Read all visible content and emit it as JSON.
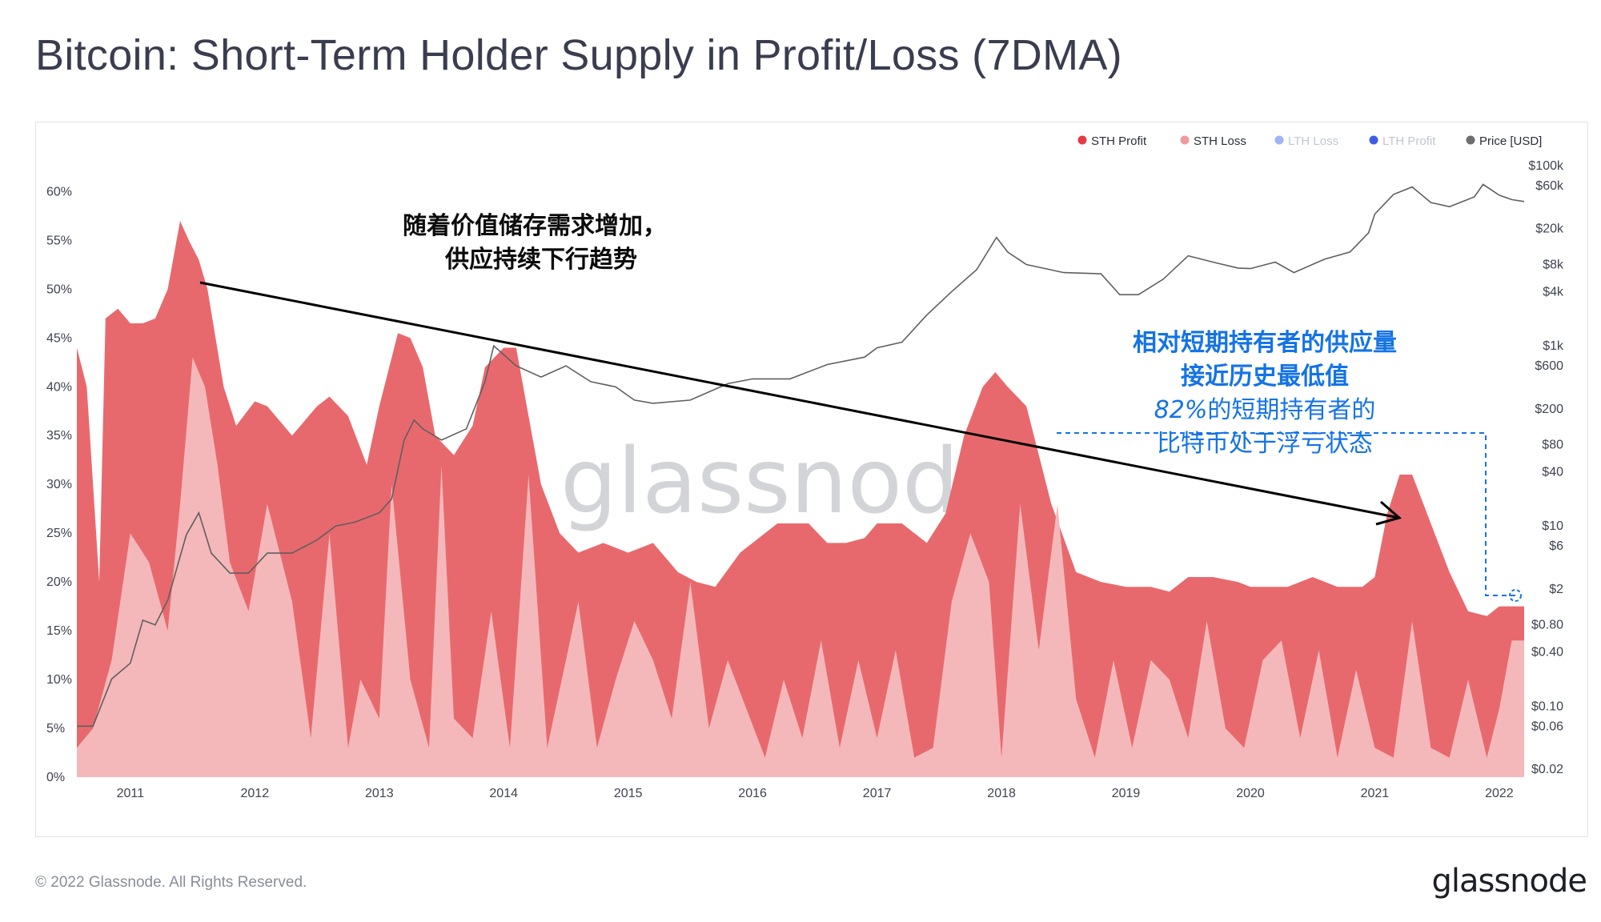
{
  "header": {
    "title": "Bitcoin: Short-Term Holder Supply in Profit/Loss (7DMA)"
  },
  "footer": {
    "copyright": "© 2022 Glassnode. All Rights Reserved.",
    "brand": "glassnode"
  },
  "watermark": "glassnode",
  "legend": [
    {
      "label": "STH Profit",
      "color": "#e53946",
      "muted": false
    },
    {
      "label": "STH Loss",
      "color": "#f09a9c",
      "muted": false
    },
    {
      "label": "LTH Loss",
      "color": "#9fb3f5",
      "muted": true
    },
    {
      "label": "LTH Profit",
      "color": "#3d5ce6",
      "muted": true
    },
    {
      "label": "Price [USD]",
      "color": "#6e6e6e",
      "muted": false
    }
  ],
  "annotations": {
    "trend_line1": "随着价值储存需求增加，",
    "trend_line2": "供应持续下行趋势",
    "note_bold1": "相对短期持有者的供应量",
    "note_bold2": "接近历史最低值",
    "note_pct": "82%",
    "note_line3_rest": "的短期持有者的",
    "note_line4": "比特币处于浮亏状态"
  },
  "chart_data": {
    "type": "area",
    "x_ticks": [
      "2011",
      "2012",
      "2013",
      "2014",
      "2015",
      "2016",
      "2017",
      "2018",
      "2019",
      "2020",
      "2021",
      "2022"
    ],
    "x_range": [
      2010.57,
      2022.2
    ],
    "y_left": {
      "ticks": [
        "0%",
        "5%",
        "10%",
        "15%",
        "20%",
        "25%",
        "30%",
        "35%",
        "40%",
        "45%",
        "50%",
        "55%",
        "60%"
      ],
      "range": [
        0,
        62
      ],
      "unit": "%"
    },
    "y_right": {
      "ticks": [
        "$0.02",
        "$0.06",
        "$0.10",
        "$0.40",
        "$0.80",
        "$2",
        "$6",
        "$10",
        "$40",
        "$80",
        "$200",
        "$600",
        "$1k",
        "$4k",
        "$8k",
        "$20k",
        "$60k",
        "$100k"
      ],
      "scale": "log",
      "range": [
        0.02,
        100000
      ]
    },
    "grid": false,
    "legend_position": "top-right",
    "series": [
      {
        "name": "STH Profit",
        "color": "#e8696d",
        "x": [
          2010.57,
          2010.65,
          2010.75,
          2010.8,
          2010.9,
          2011.0,
          2011.1,
          2011.2,
          2011.3,
          2011.4,
          2011.47,
          2011.55,
          2011.62,
          2011.75,
          2011.85,
          2012.0,
          2012.1,
          2012.3,
          2012.5,
          2012.6,
          2012.75,
          2012.9,
          2013.0,
          2013.15,
          2013.25,
          2013.35,
          2013.45,
          2013.6,
          2013.75,
          2013.85,
          2014.0,
          2014.1,
          2014.2,
          2014.3,
          2014.45,
          2014.6,
          2014.8,
          2015.0,
          2015.2,
          2015.4,
          2015.55,
          2015.7,
          2015.9,
          2016.0,
          2016.2,
          2016.45,
          2016.6,
          2016.75,
          2016.9,
          2017.0,
          2017.2,
          2017.4,
          2017.55,
          2017.7,
          2017.85,
          2017.95,
          2018.05,
          2018.2,
          2018.4,
          2018.6,
          2018.8,
          2019.0,
          2019.2,
          2019.35,
          2019.5,
          2019.7,
          2019.9,
          2020.0,
          2020.15,
          2020.3,
          2020.5,
          2020.7,
          2020.9,
          2021.0,
          2021.1,
          2021.2,
          2021.3,
          2021.45,
          2021.6,
          2021.75,
          2021.9,
          2022.0,
          2022.1,
          2022.2
        ],
        "values": [
          44,
          40,
          20,
          47,
          48,
          46.5,
          46.5,
          47,
          50,
          57,
          55,
          53,
          50,
          40,
          36,
          38.5,
          38,
          35,
          38,
          39,
          37,
          32,
          38,
          45.5,
          45,
          42,
          35,
          33,
          36,
          42,
          44,
          44,
          37,
          30,
          25,
          23,
          24,
          23,
          24,
          21,
          20,
          19.5,
          23,
          24,
          26,
          26,
          24,
          24,
          24.5,
          26,
          26,
          24,
          27,
          35,
          40,
          41.5,
          40,
          38,
          28,
          21,
          20,
          19.5,
          19.5,
          19,
          20.5,
          20.5,
          20,
          19.5,
          19.5,
          19.5,
          20.5,
          19.5,
          19.5,
          20.5,
          27,
          31,
          31,
          26,
          21,
          17,
          16.5,
          17.5,
          17.5,
          17.5
        ]
      },
      {
        "name": "STH Loss",
        "color": "#f4b8ba",
        "x": [
          2010.57,
          2010.7,
          2010.85,
          2011.0,
          2011.15,
          2011.3,
          2011.4,
          2011.5,
          2011.6,
          2011.7,
          2011.8,
          2011.95,
          2012.1,
          2012.3,
          2012.45,
          2012.6,
          2012.75,
          2012.85,
          2013.0,
          2013.1,
          2013.25,
          2013.4,
          2013.5,
          2013.6,
          2013.75,
          2013.9,
          2014.05,
          2014.2,
          2014.35,
          2014.5,
          2014.6,
          2014.75,
          2014.9,
          2015.05,
          2015.2,
          2015.35,
          2015.5,
          2015.65,
          2015.8,
          2015.95,
          2016.1,
          2016.25,
          2016.4,
          2016.55,
          2016.7,
          2016.85,
          2017.0,
          2017.15,
          2017.3,
          2017.45,
          2017.6,
          2017.75,
          2017.9,
          2018.0,
          2018.15,
          2018.3,
          2018.45,
          2018.6,
          2018.75,
          2018.9,
          2019.05,
          2019.2,
          2019.35,
          2019.5,
          2019.65,
          2019.8,
          2019.95,
          2020.1,
          2020.25,
          2020.4,
          2020.55,
          2020.7,
          2020.85,
          2021.0,
          2021.15,
          2021.3,
          2021.45,
          2021.6,
          2021.75,
          2021.9,
          2022.0,
          2022.1,
          2022.2
        ],
        "values": [
          3,
          5,
          12,
          25,
          22,
          15,
          28,
          43,
          40,
          32,
          22,
          17,
          28,
          18,
          4,
          25,
          3,
          10,
          6,
          30,
          10,
          3,
          32,
          6,
          4,
          17,
          3,
          31,
          3,
          12,
          18,
          3,
          10,
          16,
          12,
          6,
          20,
          5,
          12,
          7,
          2,
          10,
          4,
          14,
          3,
          12,
          4,
          13,
          2,
          3,
          18,
          25,
          20,
          2,
          28,
          13,
          28,
          8,
          2,
          12,
          3,
          12,
          10,
          4,
          16,
          5,
          3,
          12,
          14,
          4,
          13,
          2,
          11,
          3,
          2,
          16,
          3,
          2,
          10,
          2,
          7,
          14,
          14
        ]
      },
      {
        "name": "Price [USD]",
        "color": "#5f5f5f",
        "x": [
          2010.57,
          2010.7,
          2010.85,
          2011.0,
          2011.1,
          2011.2,
          2011.3,
          2011.45,
          2011.55,
          2011.65,
          2011.8,
          2011.95,
          2012.1,
          2012.3,
          2012.5,
          2012.65,
          2012.8,
          2013.0,
          2013.1,
          2013.2,
          2013.28,
          2013.35,
          2013.5,
          2013.7,
          2013.85,
          2013.92,
          2014.0,
          2014.1,
          2014.3,
          2014.5,
          2014.7,
          2014.9,
          2015.05,
          2015.2,
          2015.5,
          2015.8,
          2016.0,
          2016.3,
          2016.6,
          2016.9,
          2017.0,
          2017.2,
          2017.4,
          2017.6,
          2017.8,
          2017.96,
          2018.05,
          2018.2,
          2018.5,
          2018.8,
          2018.95,
          2019.1,
          2019.3,
          2019.5,
          2019.7,
          2019.9,
          2020.0,
          2020.2,
          2020.35,
          2020.6,
          2020.8,
          2020.95,
          2021.0,
          2021.15,
          2021.3,
          2021.45,
          2021.6,
          2021.8,
          2021.87,
          2022.0,
          2022.1,
          2022.2
        ],
        "values": [
          0.06,
          0.06,
          0.2,
          0.3,
          0.9,
          0.8,
          1.5,
          8,
          14,
          5,
          3,
          3,
          5,
          5,
          7,
          10,
          11,
          14,
          20,
          90,
          150,
          120,
          90,
          120,
          400,
          1000,
          800,
          600,
          450,
          600,
          400,
          350,
          250,
          230,
          250,
          380,
          430,
          430,
          620,
          750,
          950,
          1100,
          2200,
          4000,
          7000,
          16000,
          11000,
          8000,
          6500,
          6300,
          3700,
          3700,
          5500,
          10000,
          8500,
          7300,
          7200,
          8500,
          6500,
          9200,
          11000,
          18000,
          29000,
          48000,
          58000,
          39000,
          35000,
          45000,
          62000,
          47000,
          42000,
          40000
        ]
      }
    ]
  }
}
